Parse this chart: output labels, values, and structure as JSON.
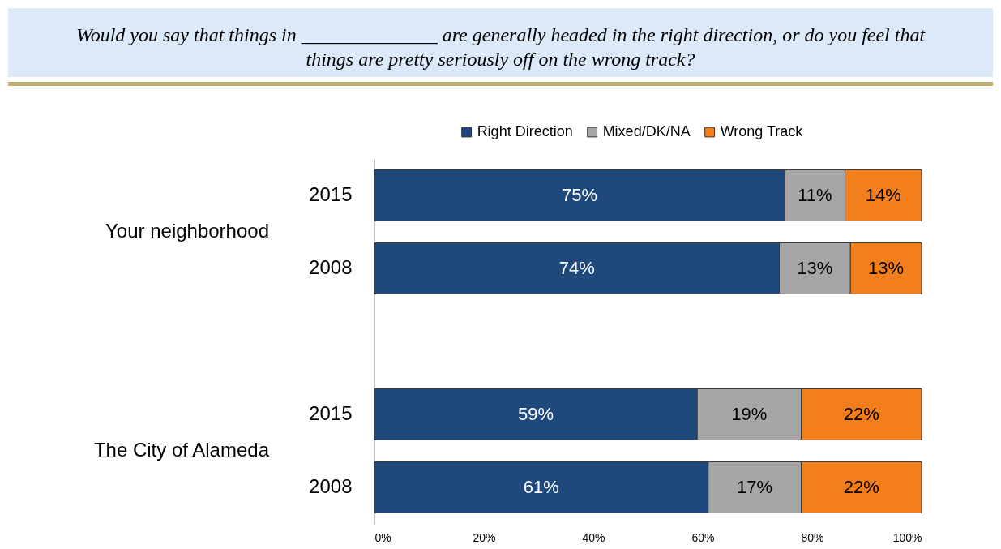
{
  "chart_data": {
    "type": "bar",
    "orientation": "horizontal",
    "stacked": true,
    "title": "Would you say that things in ______________ are generally headed in the right direction, or do you feel that things are pretty seriously off on the wrong track?",
    "categories": [
      "2015",
      "2008",
      null,
      "2015",
      "2008"
    ],
    "series": [
      {
        "name": "Right Direction",
        "color": "#1f497d",
        "values": [
          75,
          74,
          null,
          59,
          61
        ],
        "value_labels": [
          "75%",
          "74%",
          null,
          "59%",
          "61%"
        ]
      },
      {
        "name": "Mixed/DK/NA",
        "color": "#a6a6a6",
        "values": [
          11,
          13,
          null,
          19,
          17
        ],
        "value_labels": [
          "11%",
          "13%",
          null,
          "19%",
          "17%"
        ]
      },
      {
        "name": "Wrong Track",
        "color": "#f37f1c",
        "values": [
          14,
          13,
          null,
          22,
          22
        ],
        "value_labels": [
          "14%",
          "13%",
          null,
          "22%",
          "22%"
        ]
      }
    ],
    "xlim": [
      0,
      100
    ],
    "xticks": [
      {
        "value": 0,
        "label": "0%"
      },
      {
        "value": 20,
        "label": "20%"
      },
      {
        "value": 40,
        "label": "40%"
      },
      {
        "value": 60,
        "label": "60%"
      },
      {
        "value": 80,
        "label": "80%"
      },
      {
        "value": 100,
        "label": "100%"
      }
    ],
    "legend": "top",
    "grid": false,
    "annotations": [
      "Your neighborhood",
      "The City of Alameda"
    ]
  }
}
